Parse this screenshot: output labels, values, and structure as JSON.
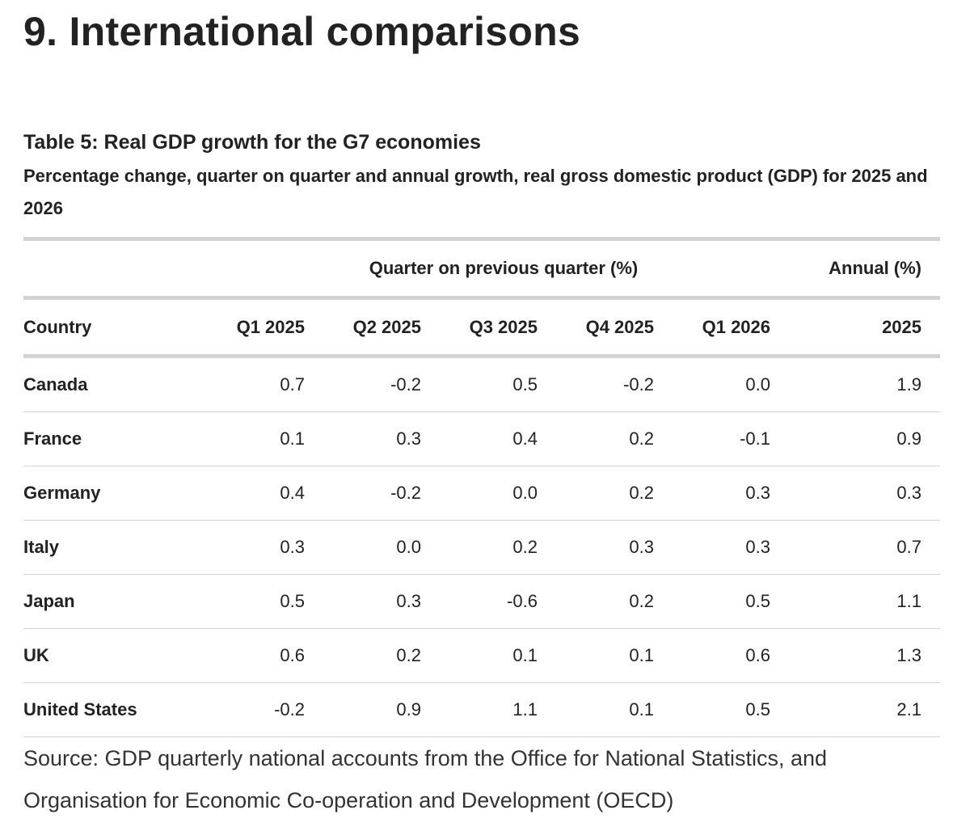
{
  "heading": "9. International comparisons",
  "table": {
    "title": "Table 5: Real GDP growth for the G7 economies",
    "subtitle": "Percentage change, quarter on quarter and annual growth, real gross domestic product (GDP) for 2025 and 2026",
    "group_headers": [
      "Quarter on previous quarter (%)",
      "Annual (%)"
    ],
    "columns": [
      "Country",
      "Q1 2025",
      "Q2 2025",
      "Q3 2025",
      "Q4 2025",
      "Q1 2026",
      "2025"
    ],
    "rows": [
      [
        "Canada",
        "0.7",
        "-0.2",
        "0.5",
        "-0.2",
        "0.0",
        "1.9"
      ],
      [
        "France",
        "0.1",
        "0.3",
        "0.4",
        "0.2",
        "-0.1",
        "0.9"
      ],
      [
        "Germany",
        "0.4",
        "-0.2",
        "0.0",
        "0.2",
        "0.3",
        "0.3"
      ],
      [
        "Italy",
        "0.3",
        "0.0",
        "0.2",
        "0.3",
        "0.3",
        "0.7"
      ],
      [
        "Japan",
        "0.5",
        "0.3",
        "-0.6",
        "0.2",
        "0.5",
        "1.1"
      ],
      [
        "UK",
        "0.6",
        "0.2",
        "0.1",
        "0.1",
        "0.6",
        "1.3"
      ],
      [
        "United States",
        "-0.2",
        "0.9",
        "1.1",
        "0.1",
        "0.5",
        "2.1"
      ]
    ]
  },
  "source": "Source: GDP quarterly national accounts from the Office for National Statistics, and Organisation for Economic Co-operation and Development (OECD)"
}
